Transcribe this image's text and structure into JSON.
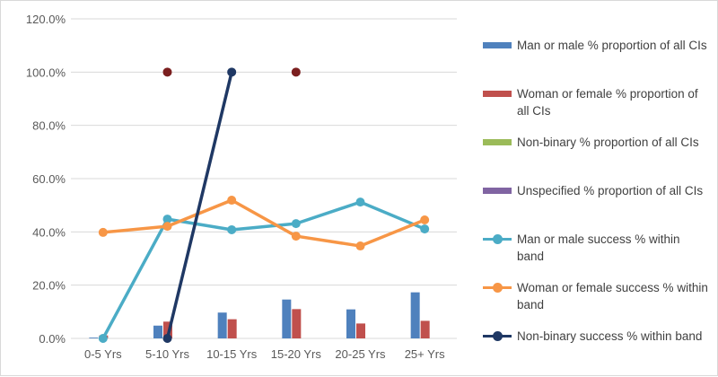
{
  "chart_data": {
    "type": "bar+line",
    "categories": [
      "0-5 Yrs",
      "5-10 Yrs",
      "10-15 Yrs",
      "15-20 Yrs",
      "20-25 Yrs",
      "25+ Yrs"
    ],
    "ylim": [
      0,
      120
    ],
    "yticks": [
      "0.0%",
      "20.0%",
      "40.0%",
      "60.0%",
      "80.0%",
      "100.0%",
      "120.0%"
    ],
    "grid": true,
    "legend_position": "right",
    "bar_series": [
      {
        "name": "Man or male % proportion of all CIs",
        "color": "#4f81bd",
        "values": [
          0.3,
          4.8,
          9.7,
          14.6,
          10.9,
          17.3
        ]
      },
      {
        "name": "Woman or female % proportion of all CIs",
        "color": "#c0504d",
        "values": [
          1.1,
          6.3,
          7.2,
          11.0,
          5.6,
          6.6
        ]
      },
      {
        "name": "Non-binary  % proportion of all CIs",
        "color": "#9bbb59",
        "values": [
          0,
          0,
          0,
          0,
          0,
          0
        ]
      },
      {
        "name": "Unspecified  % proportion of all CIs",
        "color": "#8064a2",
        "values": [
          0,
          0,
          0,
          0,
          0,
          0
        ]
      }
    ],
    "line_series": [
      {
        "name": "Man or male success % within band",
        "color": "#4bacc6",
        "values": [
          0,
          44.8,
          40.8,
          43.1,
          51.2,
          41.1
        ]
      },
      {
        "name": "Woman or female success % within band",
        "color": "#f79646",
        "values": [
          39.8,
          42.1,
          51.9,
          38.4,
          34.7,
          44.5
        ]
      },
      {
        "name": "Non-binary success % within band",
        "color": "#1f3864",
        "values": [
          null,
          0,
          100,
          null,
          null,
          null
        ]
      }
    ],
    "point_series": [
      {
        "color": "#7b1f1f",
        "values": [
          null,
          100,
          null,
          100,
          null,
          null
        ]
      }
    ]
  }
}
